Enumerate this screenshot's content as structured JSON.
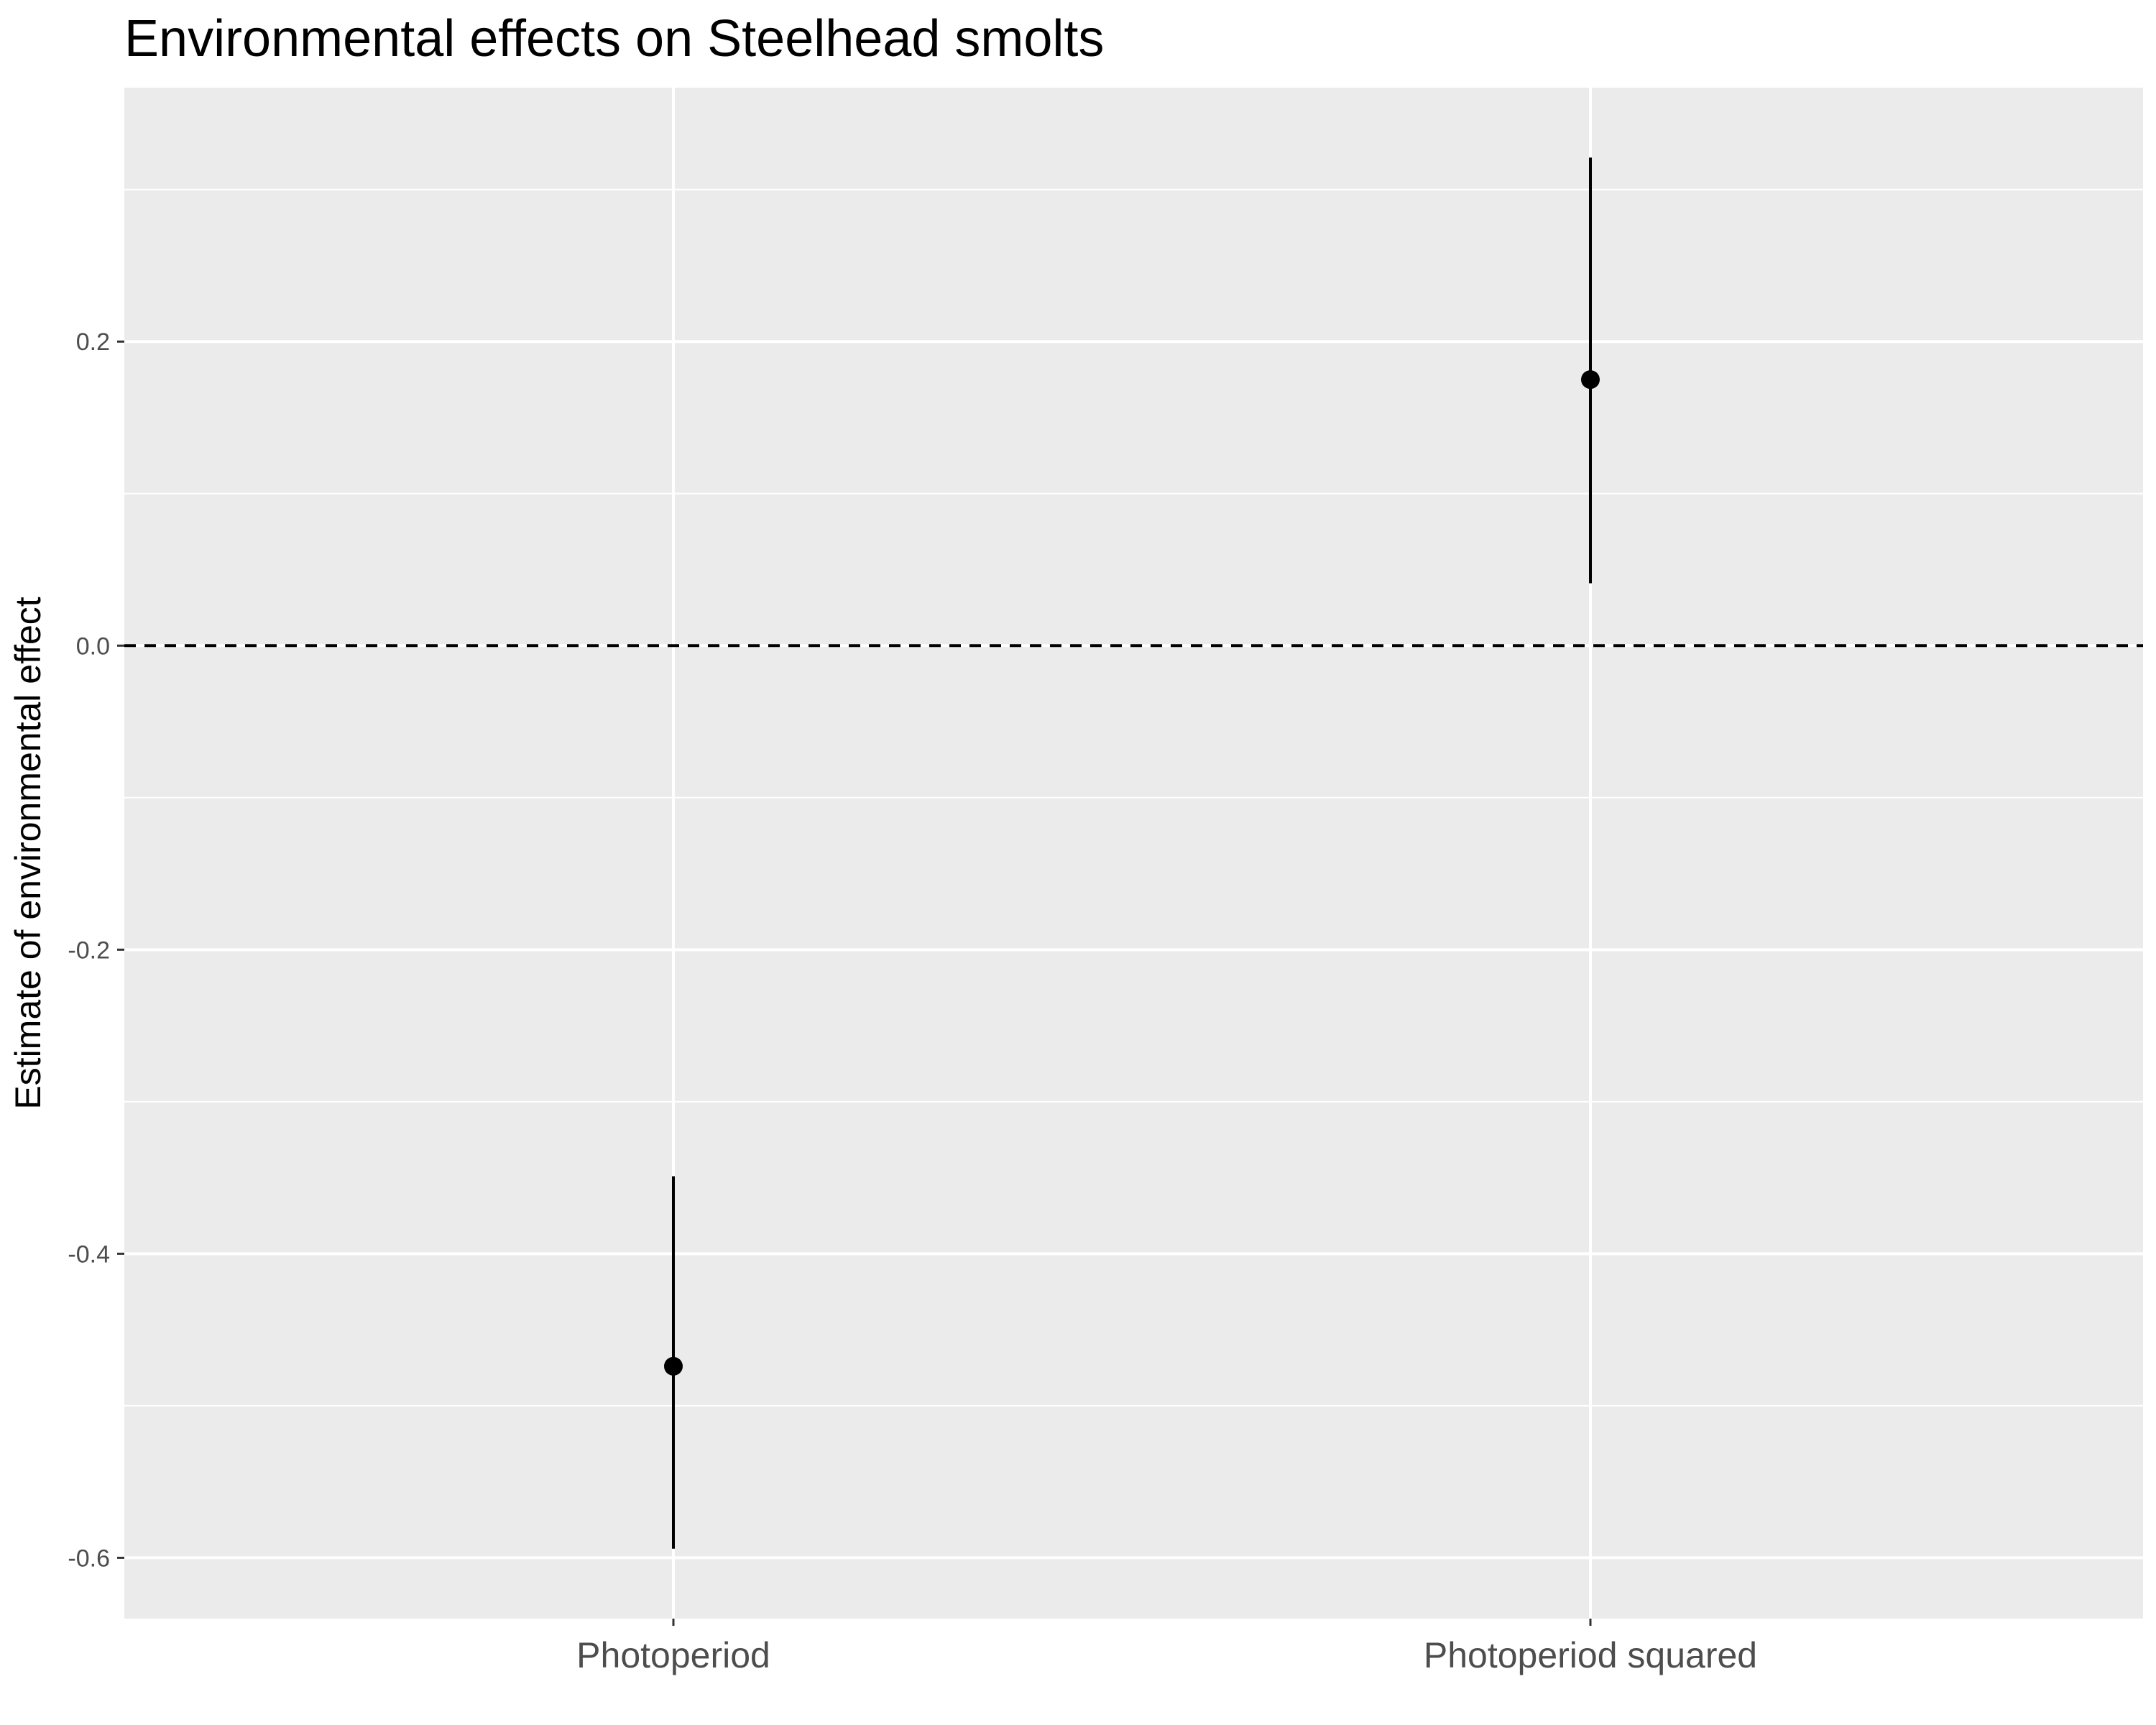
{
  "chart_data": {
    "type": "scatter",
    "title": "Environmental effects on Steelhead smolts",
    "xlabel": "",
    "ylabel": "Estimate of environmental effect",
    "categories": [
      "Photoperiod",
      "Photoperiod squared"
    ],
    "series": [
      {
        "estimates": [
          -0.474,
          0.175
        ],
        "lower": [
          -0.594,
          0.041
        ],
        "upper": [
          -0.349,
          0.321
        ]
      }
    ],
    "reference_line": {
      "y": 0.0,
      "style": "dashed"
    },
    "ylim": [
      -0.64,
      0.367
    ],
    "y_ticks": [
      -0.6,
      -0.4,
      -0.2,
      0.0,
      0.2
    ],
    "y_tick_labels": [
      "-0.6",
      "-0.4",
      "-0.2",
      "0.0",
      "0.2"
    ],
    "y_minor_ticks": [
      -0.5,
      -0.3,
      -0.1,
      0.1,
      0.3
    ],
    "grid": true,
    "legend": "none",
    "colors": {
      "panel_background": "#ebebeb",
      "grid_line": "#ffffff",
      "mark": "#000000",
      "axis_text": "#4d4d4d",
      "title_text": "#000000"
    }
  }
}
